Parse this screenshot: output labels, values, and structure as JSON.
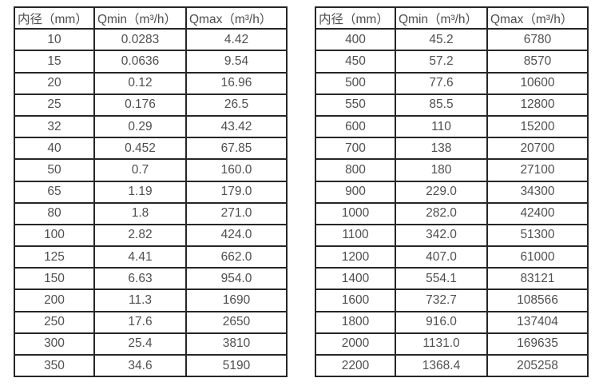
{
  "style": {
    "border_color": "#262626",
    "text_color": "#4f4f4f",
    "background": "#ffffff"
  },
  "tables": [
    {
      "name": "flow-spec-table-small-diameters",
      "headers": [
        "内径（mm）",
        "Qmin（m³/h）",
        "Qmax（m³/h）"
      ],
      "rows": [
        [
          "10",
          "0.0283",
          "4.42"
        ],
        [
          "15",
          "0.0636",
          "9.54"
        ],
        [
          "20",
          "0.12",
          "16.96"
        ],
        [
          "25",
          "0.176",
          "26.5"
        ],
        [
          "32",
          "0.29",
          "43.42"
        ],
        [
          "40",
          "0.452",
          "67.85"
        ],
        [
          "50",
          "0.7",
          "160.0"
        ],
        [
          "65",
          "1.19",
          "179.0"
        ],
        [
          "80",
          "1.8",
          "271.0"
        ],
        [
          "100",
          "2.82",
          "424.0"
        ],
        [
          "125",
          "4.41",
          "662.0"
        ],
        [
          "150",
          "6.63",
          "954.0"
        ],
        [
          "200",
          "11.3",
          "1690"
        ],
        [
          "250",
          "17.6",
          "2650"
        ],
        [
          "300",
          "25.4",
          "3810"
        ],
        [
          "350",
          "34.6",
          "5190"
        ]
      ]
    },
    {
      "name": "flow-spec-table-large-diameters",
      "headers": [
        "内径（mm）",
        "Qmin（m³/h）",
        "Qmax（m³/h）"
      ],
      "rows": [
        [
          "400",
          "45.2",
          "6780"
        ],
        [
          "450",
          "57.2",
          "8570"
        ],
        [
          "500",
          "77.6",
          "10600"
        ],
        [
          "550",
          "85.5",
          "12800"
        ],
        [
          "600",
          "110",
          "15200"
        ],
        [
          "700",
          "138",
          "20700"
        ],
        [
          "800",
          "180",
          "27100"
        ],
        [
          "900",
          "229.0",
          "34300"
        ],
        [
          "1000",
          "282.0",
          "42400"
        ],
        [
          "1100",
          "342.0",
          "51300"
        ],
        [
          "1200",
          "407.0",
          "61000"
        ],
        [
          "1400",
          "554.1",
          "83121"
        ],
        [
          "1600",
          "732.7",
          "108566"
        ],
        [
          "1800",
          "916.0",
          "137404"
        ],
        [
          "2000",
          "1131.0",
          "169635"
        ],
        [
          "2200",
          "1368.4",
          "205258"
        ]
      ]
    }
  ]
}
